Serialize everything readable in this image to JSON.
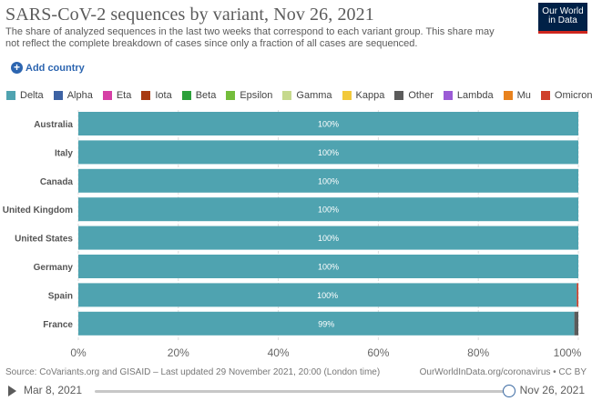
{
  "header": {
    "title": "SARS-CoV-2 sequences by variant, Nov 26, 2021",
    "subtitle": "The share of analyzed sequences in the last two weeks that correspond to each variant group. This share may not reflect the complete breakdown of cases since only a fraction of all cases are sequenced.",
    "logo_line1": "Our World",
    "logo_line2": "in Data"
  },
  "controls": {
    "add_country_label": "Add country",
    "add_icon": "plus-circle-icon"
  },
  "colors": {
    "Delta": "#4fa3b0",
    "Alpha": "#3d62a3",
    "Eta": "#d63fa6",
    "Iota": "#a83a12",
    "Beta": "#2ba03a",
    "Epsilon": "#74bd3b",
    "Gamma": "#c6d98d",
    "Kappa": "#f2c93b",
    "Other": "#5b5b5b",
    "Lambda": "#9b5bd6",
    "Mu": "#e8821e",
    "Omicron": "#cf3f2a"
  },
  "chart_data": {
    "type": "bar",
    "orientation": "horizontal",
    "stacked": true,
    "title": "SARS-CoV-2 sequences by variant, Nov 26, 2021",
    "categories": [
      "Australia",
      "Italy",
      "Canada",
      "United Kingdom",
      "United States",
      "Germany",
      "Spain",
      "France"
    ],
    "legend": [
      "Delta",
      "Alpha",
      "Eta",
      "Iota",
      "Beta",
      "Epsilon",
      "Gamma",
      "Kappa",
      "Other",
      "Lambda",
      "Mu",
      "Omicron"
    ],
    "legend_position": "top",
    "series": [
      {
        "name": "Delta",
        "values": [
          100,
          100,
          100,
          100,
          100,
          100,
          99.7,
          99.2
        ]
      },
      {
        "name": "Other",
        "values": [
          0,
          0,
          0,
          0,
          0,
          0,
          0,
          0.8
        ]
      },
      {
        "name": "Omicron",
        "values": [
          0,
          0,
          0,
          0,
          0,
          0,
          0.3,
          0
        ]
      }
    ],
    "data_labels": [
      "100%",
      "100%",
      "100%",
      "100%",
      "100%",
      "100%",
      "100%",
      "99%"
    ],
    "x_ticks": [
      "0%",
      "20%",
      "40%",
      "60%",
      "80%",
      "100%"
    ],
    "xlim": [
      0,
      100
    ],
    "grid": true
  },
  "footer": {
    "source": "Source: CoVariants.org and GISAID – Last updated 29 November 2021, 20:00 (London time)",
    "url": "OurWorldInData.org/coronavirus • CC BY"
  },
  "timeline": {
    "start_label": "Mar 8, 2021",
    "end_label": "Nov 26, 2021",
    "play_icon": "play-icon"
  }
}
